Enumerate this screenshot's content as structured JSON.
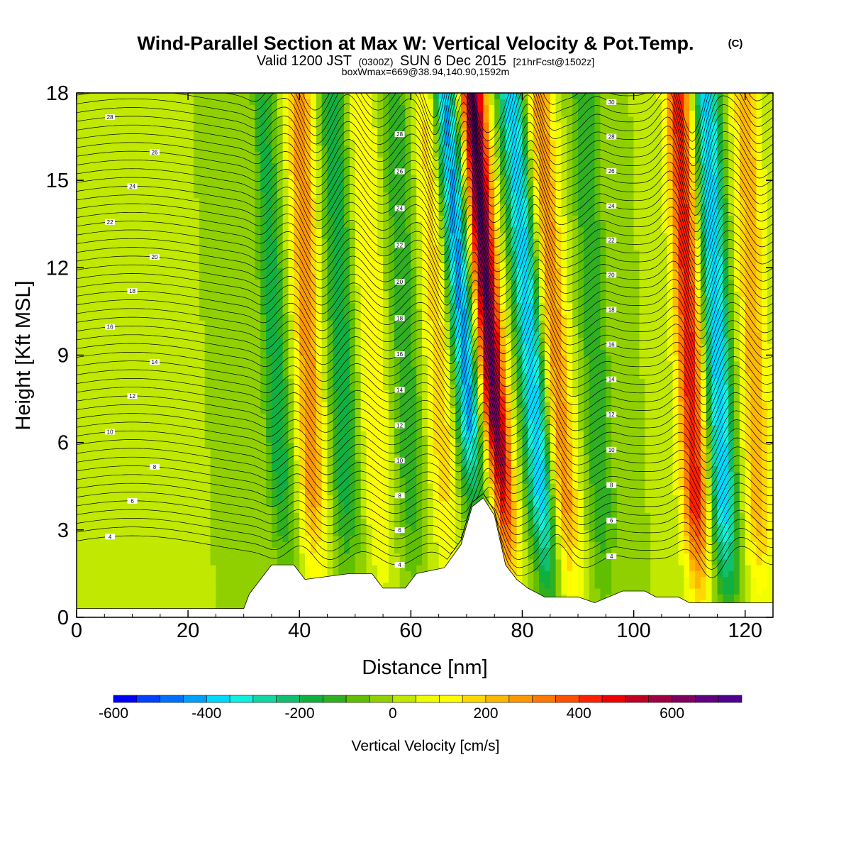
{
  "title_main": "Wind-Parallel Section at Max W: Vertical Velocity & Pot.Temp.",
  "title_copyright": "(C)",
  "subtitle_parts": [
    "Valid 1200 JST",
    "(0300Z)",
    "SUN 6 Dec 2015",
    "[21hrFcst@1502z]"
  ],
  "subtitle2": "boxWmax=669@38.94,140.90,1592m",
  "chart_data": {
    "type": "heatmap",
    "xlabel": "Distance [nm]",
    "ylabel": "Height [Kft MSL]",
    "xlim": [
      0,
      125
    ],
    "ylim": [
      0,
      18
    ],
    "x_ticks": [
      0,
      20,
      40,
      60,
      80,
      100,
      120
    ],
    "y_ticks": [
      0,
      3,
      6,
      9,
      12,
      15,
      18
    ],
    "colorbar": {
      "label": "Vertical Velocity [cm/s]",
      "range": [
        -600,
        750
      ],
      "step": 50,
      "tick_values": [
        -600,
        -400,
        -200,
        0,
        200,
        400,
        600
      ],
      "tick_labels": [
        "-600",
        "-400",
        "-200",
        "0",
        "200",
        "400",
        "600"
      ],
      "colors": [
        "#0000ff",
        "#0040ff",
        "#0070ff",
        "#00a0ff",
        "#00d8ff",
        "#10f0e0",
        "#10d8a0",
        "#10c070",
        "#10b040",
        "#30b020",
        "#60c000",
        "#90d000",
        "#c0e800",
        "#f0ff00",
        "#ffff00",
        "#ffd800",
        "#ffb800",
        "#ff9800",
        "#ff7800",
        "#ff5000",
        "#ff2000",
        "#f00000",
        "#c00020",
        "#a00040",
        "#800060",
        "#600080",
        "#500090"
      ]
    },
    "terrain_kft": [
      [
        0,
        0.3
      ],
      [
        30,
        0.3
      ],
      [
        31,
        0.8
      ],
      [
        33,
        1.3
      ],
      [
        35,
        1.8
      ],
      [
        39,
        1.8
      ],
      [
        41,
        1.3
      ],
      [
        49,
        1.5
      ],
      [
        53,
        1.5
      ],
      [
        55,
        1.0
      ],
      [
        59,
        1.0
      ],
      [
        61,
        1.5
      ],
      [
        66,
        1.7
      ],
      [
        69,
        2.5
      ],
      [
        71,
        3.8
      ],
      [
        73,
        4.1
      ],
      [
        75,
        3.5
      ],
      [
        77,
        1.8
      ],
      [
        79,
        1.3
      ],
      [
        81,
        1.0
      ],
      [
        84,
        0.7
      ],
      [
        90,
        0.7
      ],
      [
        93,
        0.5
      ],
      [
        98,
        0.9
      ],
      [
        102,
        0.9
      ],
      [
        104,
        0.7
      ],
      [
        108,
        0.7
      ],
      [
        110,
        0.5
      ],
      [
        125,
        0.5
      ]
    ],
    "theta_contours_label_values": [
      4,
      6,
      8,
      10,
      12,
      14,
      16,
      18,
      20,
      22,
      24,
      26,
      28,
      30
    ],
    "wave_updraft_axes": [
      {
        "x_bottom": 43,
        "x_top": 40,
        "w_peak": 300
      },
      {
        "x_bottom": 55,
        "x_top": 51,
        "w_peak": 150
      },
      {
        "x_bottom": 67,
        "x_top": 63,
        "w_peak": 200
      },
      {
        "x_bottom": 77.5,
        "x_top": 71,
        "w_peak": 669
      },
      {
        "x_bottom": 89,
        "x_top": 83,
        "w_peak": 300
      },
      {
        "x_bottom": 112,
        "x_top": 108,
        "w_peak": 450
      },
      {
        "x_bottom": 123,
        "x_top": 120,
        "w_peak": 250
      }
    ],
    "wave_downdraft_axes": [
      {
        "x_bottom": 38,
        "x_top": 33,
        "w_peak": -200
      },
      {
        "x_bottom": 49,
        "x_top": 46,
        "w_peak": -200
      },
      {
        "x_bottom": 61,
        "x_top": 57,
        "w_peak": -150
      },
      {
        "x_bottom": 73.5,
        "x_top": 66,
        "w_peak": -450
      },
      {
        "x_bottom": 85,
        "x_top": 78,
        "w_peak": -400
      },
      {
        "x_bottom": 95,
        "x_top": 91,
        "w_peak": -150
      },
      {
        "x_bottom": 117,
        "x_top": 113,
        "w_peak": -400
      }
    ]
  }
}
